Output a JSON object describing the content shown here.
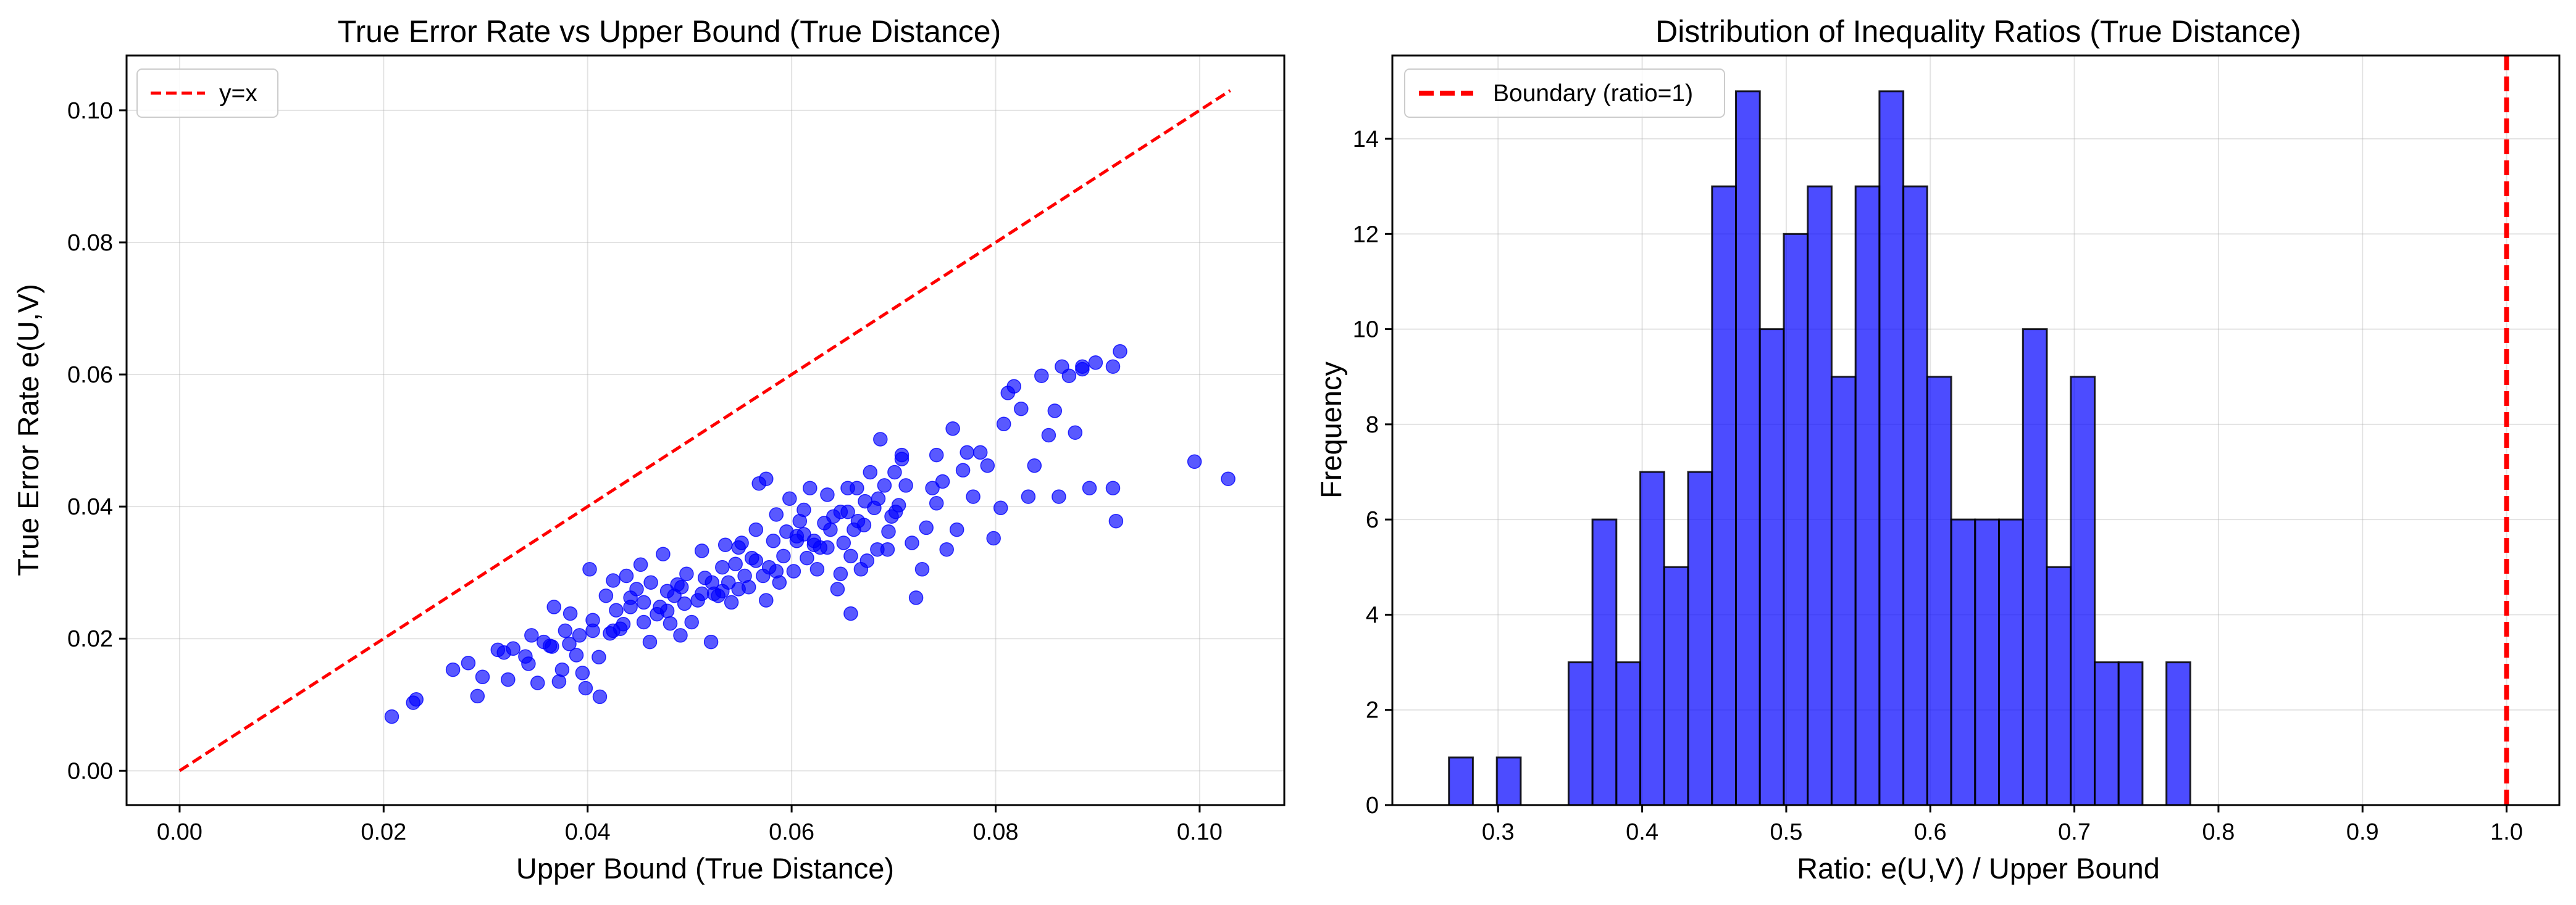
{
  "chart_data": [
    {
      "type": "scatter",
      "title": "True Error Rate vs Upper Bound (True Distance)",
      "xlabel": "Upper Bound (True Distance)",
      "ylabel": "True Error Rate e(U,V)",
      "xlim": [
        -0.0052,
        0.1083
      ],
      "ylim": [
        -0.0052,
        0.1083
      ],
      "xticks": [
        0.0,
        0.02,
        0.04,
        0.06,
        0.08,
        0.1
      ],
      "xtick_labels": [
        "0.00",
        "0.02",
        "0.04",
        "0.06",
        "0.08",
        "0.10"
      ],
      "yticks": [
        0.0,
        0.02,
        0.04,
        0.06,
        0.08,
        0.1
      ],
      "ytick_labels": [
        "0.00",
        "0.02",
        "0.04",
        "0.06",
        "0.08",
        "0.10"
      ],
      "grid": true,
      "legend": {
        "position": "top-left",
        "entries": [
          "y=x"
        ]
      },
      "reference_line": {
        "label": "y=x",
        "x": [
          0.0,
          0.103
        ],
        "y": [
          0.0,
          0.103
        ],
        "style": "dashed",
        "color": "#ff0000"
      },
      "series": [
        {
          "name": "points",
          "color": "#0000ff",
          "x": [
            0.0208,
            0.0229,
            0.0232,
            0.0268,
            0.0283,
            0.0292,
            0.0297,
            0.0312,
            0.0318,
            0.0322,
            0.0327,
            0.0339,
            0.0342,
            0.0351,
            0.0357,
            0.0363,
            0.0367,
            0.0372,
            0.0375,
            0.0378,
            0.0382,
            0.0383,
            0.0389,
            0.0392,
            0.0395,
            0.0398,
            0.0402,
            0.0405,
            0.0411,
            0.0412,
            0.0418,
            0.0422,
            0.0425,
            0.0428,
            0.0432,
            0.0435,
            0.0438,
            0.0442,
            0.0448,
            0.0452,
            0.0455,
            0.0461,
            0.0462,
            0.0468,
            0.0471,
            0.0474,
            0.0478,
            0.0481,
            0.0485,
            0.0488,
            0.0491,
            0.0495,
            0.0497,
            0.0502,
            0.0508,
            0.0512,
            0.0515,
            0.0521,
            0.0524,
            0.0528,
            0.0532,
            0.0535,
            0.0538,
            0.0541,
            0.0545,
            0.0548,
            0.0551,
            0.0554,
            0.0558,
            0.0561,
            0.0565,
            0.0568,
            0.0572,
            0.0575,
            0.0578,
            0.0582,
            0.0585,
            0.0588,
            0.0592,
            0.0595,
            0.0598,
            0.0602,
            0.0605,
            0.0608,
            0.0612,
            0.0615,
            0.0618,
            0.0622,
            0.0625,
            0.0628,
            0.0632,
            0.0635,
            0.0638,
            0.0641,
            0.0645,
            0.0648,
            0.0651,
            0.0655,
            0.0658,
            0.0661,
            0.0664,
            0.0668,
            0.0671,
            0.0674,
            0.0677,
            0.0681,
            0.0684,
            0.0687,
            0.0691,
            0.0694,
            0.0698,
            0.0701,
            0.0705,
            0.0708,
            0.0712,
            0.0718,
            0.0722,
            0.0728,
            0.0732,
            0.0738,
            0.0742,
            0.0748,
            0.0752,
            0.0758,
            0.0762,
            0.0768,
            0.0772,
            0.0778,
            0.0785,
            0.0792,
            0.0798,
            0.0805,
            0.0812,
            0.0818,
            0.0825,
            0.0832,
            0.0838,
            0.0845,
            0.0852,
            0.0858,
            0.0865,
            0.0872,
            0.0878,
            0.0885,
            0.0892,
            0.0898,
            0.0918,
            0.0922,
            0.0995,
            0.1028,
            0.0365,
            0.0455,
            0.0512,
            0.0548,
            0.0585,
            0.0622,
            0.0658,
            0.0695,
            0.0575,
            0.0612,
            0.0648,
            0.0685,
            0.0492,
            0.0532,
            0.0405,
            0.0442,
            0.0478,
            0.0565,
            0.0635,
            0.0672,
            0.0708,
            0.0742,
            0.0808,
            0.0862,
            0.0915,
            0.0885,
            0.0915,
            0.0345,
            0.0425,
            0.0522,
            0.0605,
            0.0665,
            0.0702,
            0.0655
          ],
          "y": [
            0.0082,
            0.0103,
            0.0108,
            0.0153,
            0.0163,
            0.0113,
            0.0142,
            0.0183,
            0.0179,
            0.0138,
            0.0185,
            0.0173,
            0.0162,
            0.0133,
            0.0195,
            0.0189,
            0.0248,
            0.0135,
            0.0153,
            0.0212,
            0.0192,
            0.0238,
            0.0175,
            0.0205,
            0.0148,
            0.0125,
            0.0305,
            0.0228,
            0.0172,
            0.0112,
            0.0265,
            0.0208,
            0.0288,
            0.0243,
            0.0215,
            0.0222,
            0.0295,
            0.0248,
            0.0275,
            0.0312,
            0.0255,
            0.0195,
            0.0285,
            0.0237,
            0.0248,
            0.0328,
            0.0272,
            0.0223,
            0.0265,
            0.0282,
            0.0205,
            0.0253,
            0.0298,
            0.0225,
            0.0258,
            0.0333,
            0.0292,
            0.0195,
            0.0268,
            0.0265,
            0.0308,
            0.0342,
            0.0285,
            0.0255,
            0.0313,
            0.0275,
            0.0345,
            0.0295,
            0.0278,
            0.0322,
            0.0365,
            0.0435,
            0.0295,
            0.0258,
            0.0308,
            0.0348,
            0.0388,
            0.0285,
            0.0325,
            0.0362,
            0.0412,
            0.0302,
            0.0355,
            0.0378,
            0.0395,
            0.0322,
            0.0428,
            0.0348,
            0.0305,
            0.0338,
            0.0375,
            0.0418,
            0.0365,
            0.0385,
            0.0275,
            0.0298,
            0.0345,
            0.0392,
            0.0238,
            0.0365,
            0.0428,
            0.0305,
            0.0372,
            0.0318,
            0.0452,
            0.0398,
            0.0335,
            0.0502,
            0.0432,
            0.0335,
            0.0385,
            0.0452,
            0.0402,
            0.0478,
            0.0432,
            0.0345,
            0.0262,
            0.0305,
            0.0368,
            0.0428,
            0.0405,
            0.0438,
            0.0335,
            0.0518,
            0.0365,
            0.0455,
            0.0482,
            0.0415,
            0.0482,
            0.0462,
            0.0352,
            0.0398,
            0.0572,
            0.0582,
            0.0548,
            0.0415,
            0.0462,
            0.0598,
            0.0508,
            0.0545,
            0.0612,
            0.0598,
            0.0512,
            0.0608,
            0.0428,
            0.0618,
            0.0378,
            0.0635,
            0.0468,
            0.0442,
            0.0188,
            0.0225,
            0.0268,
            0.0338,
            0.0302,
            0.0342,
            0.0325,
            0.0362,
            0.0442,
            0.0358,
            0.0392,
            0.0412,
            0.0278,
            0.0272,
            0.0212,
            0.0262,
            0.0242,
            0.0318,
            0.0338,
            0.0408,
            0.0472,
            0.0478,
            0.0525,
            0.0415,
            0.0612,
            0.0612,
            0.0428,
            0.0205,
            0.0212,
            0.0285,
            0.0348,
            0.0378,
            0.0392,
            0.0428
          ]
        }
      ]
    },
    {
      "type": "bar",
      "subtype": "histogram",
      "title": "Distribution of Inequality Ratios (True Distance)",
      "xlabel": "Ratio: e(U,V) / Upper Bound",
      "ylabel": "Frequency",
      "xlim": [
        0.2266,
        1.0366
      ],
      "ylim": [
        0,
        15.75
      ],
      "xticks": [
        0.3,
        0.4,
        0.5,
        0.6,
        0.7,
        0.8,
        0.9,
        1.0
      ],
      "xtick_labels": [
        "0.3",
        "0.4",
        "0.5",
        "0.6",
        "0.7",
        "0.8",
        "0.9",
        "1.0"
      ],
      "yticks": [
        0,
        2,
        4,
        6,
        8,
        10,
        12,
        14
      ],
      "ytick_labels": [
        "0",
        "2",
        "4",
        "6",
        "8",
        "10",
        "12",
        "14"
      ],
      "grid": true,
      "bin_start": 0.2659,
      "bin_width": 0.0166,
      "values": [
        1,
        0,
        1,
        0,
        0,
        3,
        6,
        3,
        7,
        5,
        7,
        13,
        15,
        10,
        12,
        13,
        9,
        13,
        15,
        13,
        9,
        6,
        6,
        6,
        10,
        5,
        9,
        3,
        3,
        0,
        3
      ],
      "bar_color": "#0000ff",
      "reference_line": {
        "label": "Boundary (ratio=1)",
        "x": 1.0,
        "style": "dashed",
        "color": "#ff0000"
      },
      "legend": {
        "position": "top-left",
        "entries": [
          "Boundary (ratio=1)"
        ]
      }
    }
  ]
}
